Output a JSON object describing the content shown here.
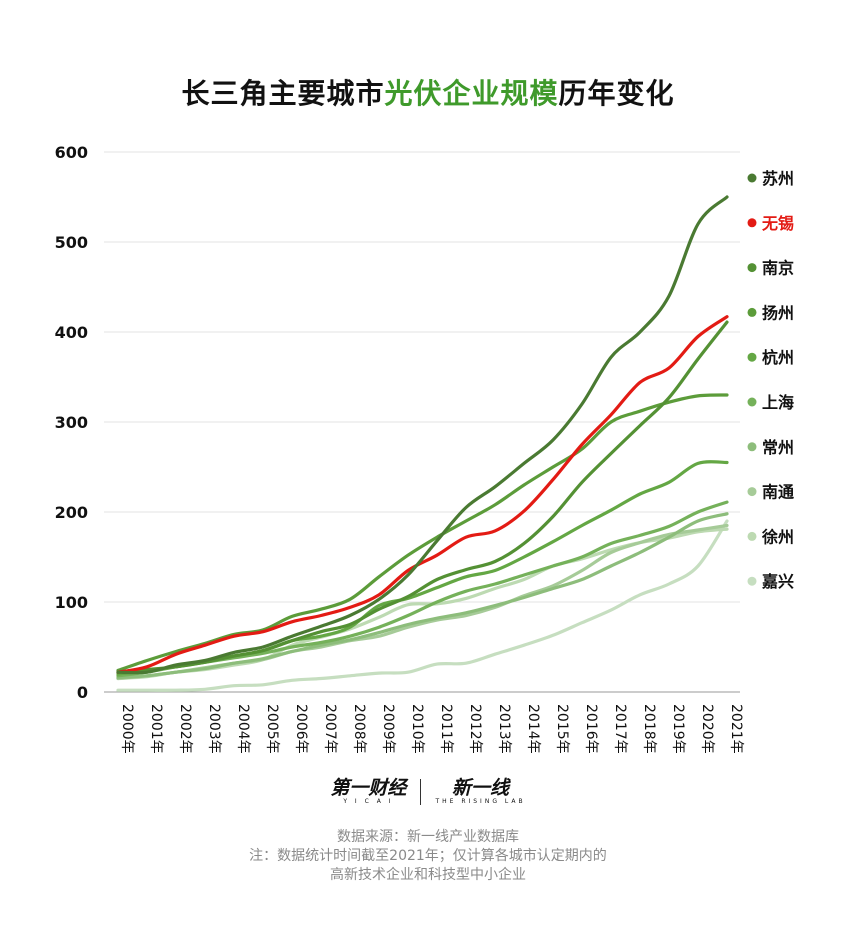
{
  "title": {
    "part1": "长三角主要城市",
    "highlight": "光伏企业规模",
    "part2": "历年变化"
  },
  "chart_data": {
    "type": "line",
    "title": "长三角主要城市光伏企业规模历年变化",
    "x": [
      "2000年",
      "2001年",
      "2002年",
      "2003年",
      "2004年",
      "2005年",
      "2006年",
      "2007年",
      "2008年",
      "2009年",
      "2010年",
      "2011年",
      "2012年",
      "2013年",
      "2014年",
      "2015年",
      "2016年",
      "2017年",
      "2018年",
      "2019年",
      "2020年",
      "2021年"
    ],
    "ylim": [
      0,
      600
    ],
    "yticks": [
      0,
      100,
      200,
      300,
      400,
      500,
      600
    ],
    "grid": true,
    "legend": "right",
    "series": [
      {
        "name": "苏州",
        "color": "#4a7a32",
        "values": [
          22,
          22,
          30,
          35,
          44,
          50,
          62,
          73,
          85,
          103,
          130,
          168,
          205,
          228,
          254,
          280,
          320,
          372,
          400,
          440,
          520,
          550
        ]
      },
      {
        "name": "无锡",
        "color": "#e31b14",
        "values": [
          22,
          28,
          42,
          52,
          62,
          67,
          78,
          85,
          94,
          108,
          135,
          152,
          172,
          179,
          201,
          236,
          275,
          308,
          344,
          360,
          395,
          417
        ]
      },
      {
        "name": "南京",
        "color": "#549134",
        "values": [
          22,
          25,
          28,
          33,
          40,
          46,
          57,
          67,
          75,
          92,
          106,
          125,
          136,
          145,
          165,
          195,
          233,
          265,
          296,
          327,
          370,
          411
        ]
      },
      {
        "name": "扬州",
        "color": "#5c9c3a",
        "values": [
          24,
          35,
          45,
          54,
          64,
          69,
          84,
          92,
          103,
          128,
          152,
          172,
          190,
          208,
          230,
          250,
          270,
          300,
          312,
          322,
          329,
          330
        ]
      },
      {
        "name": "杭州",
        "color": "#64a744",
        "values": [
          20,
          24,
          28,
          34,
          40,
          46,
          57,
          62,
          72,
          96,
          104,
          116,
          128,
          135,
          150,
          167,
          185,
          202,
          220,
          233,
          254,
          255
        ]
      },
      {
        "name": "上海",
        "color": "#75b15a",
        "values": [
          18,
          22,
          28,
          33,
          38,
          43,
          50,
          55,
          62,
          72,
          85,
          100,
          112,
          120,
          130,
          140,
          150,
          165,
          174,
          184,
          200,
          211
        ]
      },
      {
        "name": "常州",
        "color": "#8dbd7b",
        "values": [
          16,
          18,
          22,
          26,
          32,
          37,
          45,
          52,
          58,
          66,
          75,
          82,
          88,
          96,
          105,
          115,
          125,
          140,
          155,
          172,
          190,
          198
        ]
      },
      {
        "name": "南通",
        "color": "#a6cb98",
        "values": [
          15,
          18,
          22,
          27,
          32,
          36,
          45,
          50,
          57,
          62,
          72,
          80,
          85,
          94,
          107,
          118,
          135,
          155,
          166,
          175,
          180,
          185
        ]
      },
      {
        "name": "徐州",
        "color": "#bddab2",
        "values": [
          15,
          17,
          22,
          25,
          30,
          36,
          52,
          61,
          70,
          83,
          97,
          98,
          104,
          115,
          125,
          140,
          148,
          158,
          166,
          171,
          178,
          181
        ]
      },
      {
        "name": "嘉兴",
        "color": "#c6dec0",
        "values": [
          2,
          2,
          2,
          3,
          7,
          8,
          13,
          15,
          18,
          21,
          22,
          31,
          32,
          42,
          52,
          63,
          77,
          91,
          108,
          120,
          140,
          190
        ]
      }
    ]
  },
  "logos": {
    "yicai": "第一财经",
    "yicai_sub": "Y I C A I",
    "xyx": "新一线",
    "xyx_sub": "THE RISING LAB"
  },
  "notes": {
    "source": "数据来源：新一线产业数据库",
    "line1": "注：数据统计时间截至2021年；仅计算各城市认定期内的",
    "line2": "高新技术企业和科技型中小企业"
  }
}
